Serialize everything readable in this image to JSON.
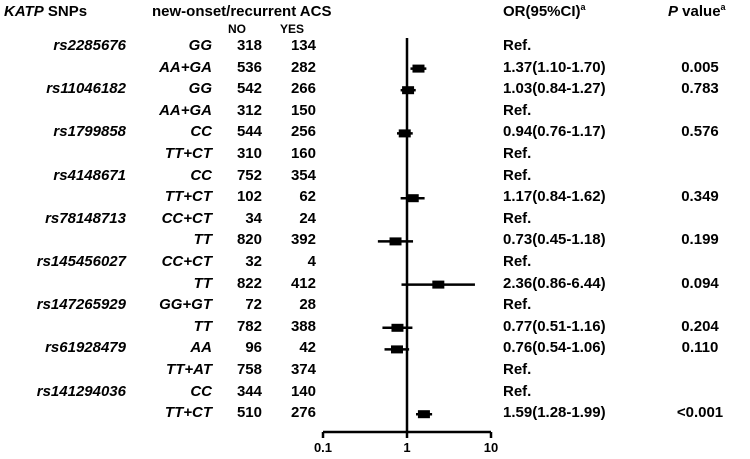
{
  "header": {
    "snp_title_italic": "KATP",
    "snp_title_rest": " SNPs",
    "group_title": "new-onset/recurrent ACS",
    "no_label": "NO",
    "yes_label": "YES",
    "or_title": "OR(95%CI)",
    "or_title_sup": "a",
    "p_title_italic": "P",
    "p_title_rest": " value",
    "p_title_sup": "a"
  },
  "axis": {
    "scale": "log",
    "ticks": [
      0.1,
      1,
      10
    ],
    "tick_labels": [
      "0.1",
      "1",
      "10"
    ],
    "reference_line": 1
  },
  "rows": [
    {
      "snp": "rs2285676",
      "genotype": "GG",
      "no": "318",
      "yes": "134",
      "or_text": "Ref.",
      "p": ""
    },
    {
      "snp": "",
      "genotype": "AA+GA",
      "no": "536",
      "yes": "282",
      "or_text": "1.37(1.10-1.70)",
      "p": "0.005"
    },
    {
      "snp": "rs11046182",
      "genotype": "GG",
      "no": "542",
      "yes": "266",
      "or_text": "1.03(0.84-1.27)",
      "p": "0.783"
    },
    {
      "snp": "",
      "genotype": "AA+GA",
      "no": "312",
      "yes": "150",
      "or_text": "Ref.",
      "p": ""
    },
    {
      "snp": "rs1799858",
      "genotype": "CC",
      "no": "544",
      "yes": "256",
      "or_text": "0.94(0.76-1.17)",
      "p": "0.576"
    },
    {
      "snp": "",
      "genotype": "TT+CT",
      "no": "310",
      "yes": "160",
      "or_text": "Ref.",
      "p": ""
    },
    {
      "snp": "rs4148671",
      "genotype": "CC",
      "no": "752",
      "yes": "354",
      "or_text": "Ref.",
      "p": ""
    },
    {
      "snp": "",
      "genotype": "TT+CT",
      "no": "102",
      "yes": "62",
      "or_text": "1.17(0.84-1.62)",
      "p": "0.349"
    },
    {
      "snp": "rs78148713",
      "genotype": "CC+CT",
      "no": "34",
      "yes": "24",
      "or_text": "Ref.",
      "p": ""
    },
    {
      "snp": "",
      "genotype": "TT",
      "no": "820",
      "yes": "392",
      "or_text": "0.73(0.45-1.18)",
      "p": "0.199"
    },
    {
      "snp": "rs145456027",
      "genotype": "CC+CT",
      "no": "32",
      "yes": "4",
      "or_text": "Ref.",
      "p": ""
    },
    {
      "snp": "",
      "genotype": "TT",
      "no": "822",
      "yes": "412",
      "or_text": "2.36(0.86-6.44)",
      "p": "0.094"
    },
    {
      "snp": "rs147265929",
      "genotype": "GG+GT",
      "no": "72",
      "yes": "28",
      "or_text": "Ref.",
      "p": ""
    },
    {
      "snp": "",
      "genotype": "TT",
      "no": "782",
      "yes": "388",
      "or_text": "0.77(0.51-1.16)",
      "p": "0.204"
    },
    {
      "snp": "rs61928479",
      "genotype": "AA",
      "no": "96",
      "yes": "42",
      "or_text": "0.76(0.54-1.06)",
      "p": "0.110"
    },
    {
      "snp": "",
      "genotype": "TT+AT",
      "no": "758",
      "yes": "374",
      "or_text": "Ref.",
      "p": ""
    },
    {
      "snp": "rs141294036",
      "genotype": "CC",
      "no": "344",
      "yes": "140",
      "or_text": "Ref.",
      "p": ""
    },
    {
      "snp": "",
      "genotype": "TT+CT",
      "no": "510",
      "yes": "276",
      "or_text": "1.59(1.28-1.99)",
      "p": "<0.001"
    }
  ],
  "chart_data": {
    "type": "scatter",
    "subtype": "forest_plot",
    "x_scale": "log",
    "xlim": [
      0.1,
      10
    ],
    "x_ticks": [
      0.1,
      1,
      10
    ],
    "points": [
      {
        "row": 1,
        "or": 1.37,
        "lower": 1.1,
        "upper": 1.7
      },
      {
        "row": 2,
        "or": 1.03,
        "lower": 0.84,
        "upper": 1.27
      },
      {
        "row": 4,
        "or": 0.94,
        "lower": 0.76,
        "upper": 1.17
      },
      {
        "row": 7,
        "or": 1.17,
        "lower": 0.84,
        "upper": 1.62
      },
      {
        "row": 9,
        "or": 0.73,
        "lower": 0.45,
        "upper": 1.18
      },
      {
        "row": 11,
        "or": 2.36,
        "lower": 0.86,
        "upper": 6.44
      },
      {
        "row": 13,
        "or": 0.77,
        "lower": 0.51,
        "upper": 1.16
      },
      {
        "row": 14,
        "or": 0.76,
        "lower": 0.54,
        "upper": 1.06
      },
      {
        "row": 17,
        "or": 1.59,
        "lower": 1.28,
        "upper": 1.99
      }
    ]
  }
}
